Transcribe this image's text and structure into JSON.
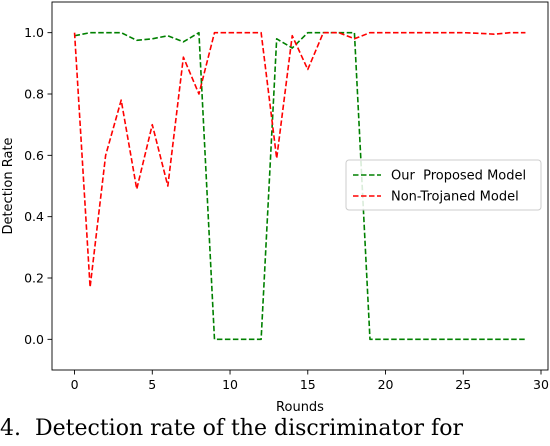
{
  "chart_data": {
    "type": "line",
    "xlabel": "Rounds",
    "ylabel": "Detection Rate",
    "xlim": [
      -1.45,
      30.45
    ],
    "ylim": [
      -0.1,
      1.1
    ],
    "xticks": [
      0,
      5,
      10,
      15,
      20,
      25,
      30
    ],
    "yticks": [
      0.0,
      0.2,
      0.4,
      0.6,
      0.8,
      1.0
    ],
    "ytick_labels": [
      "0.0",
      "0.2",
      "0.4",
      "0.6",
      "0.8",
      "1.0"
    ],
    "grid": false,
    "legend_position": "center-right",
    "x": [
      0,
      1,
      2,
      3,
      4,
      5,
      6,
      7,
      8,
      9,
      10,
      11,
      12,
      13,
      14,
      15,
      16,
      17,
      18,
      19,
      20,
      21,
      22,
      23,
      24,
      25,
      26,
      27,
      28,
      29
    ],
    "series": [
      {
        "name": "Our  Proposed Model",
        "color": "#008000",
        "style": "dashed",
        "values": [
          0.99,
          1.0,
          1.0,
          1.0,
          0.975,
          0.98,
          0.99,
          0.97,
          1.0,
          0.0,
          0.0,
          0.0,
          0.0,
          0.98,
          0.95,
          1.0,
          1.0,
          1.0,
          1.0,
          0.0,
          0.0,
          0.0,
          0.0,
          0.0,
          0.0,
          0.0,
          0.0,
          0.0,
          0.0,
          0.0
        ]
      },
      {
        "name": "Non-Trojaned Model",
        "color": "#ff0000",
        "style": "dashed",
        "values": [
          1.0,
          0.17,
          0.6,
          0.78,
          0.49,
          0.7,
          0.5,
          0.92,
          0.8,
          1.0,
          1.0,
          1.0,
          1.0,
          0.59,
          0.99,
          0.88,
          1.0,
          1.0,
          0.98,
          1.0,
          1.0,
          1.0,
          1.0,
          1.0,
          1.0,
          1.0,
          0.998,
          0.995,
          1.0,
          1.0
        ]
      }
    ]
  },
  "caption": "4.  Detection rate of the discriminator for"
}
